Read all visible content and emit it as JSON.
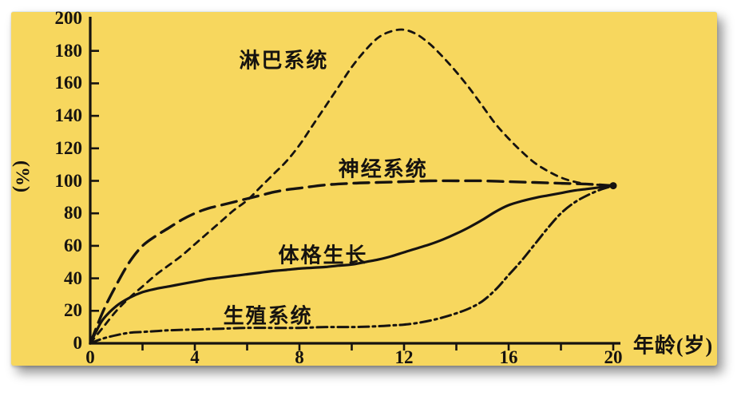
{
  "figure": {
    "background_color": "#F7D75E",
    "ink_color": "#161310",
    "page_color": "#ffffff"
  },
  "chart_data": {
    "type": "line",
    "title": "",
    "xlabel": "年龄(岁)",
    "ylabel": "(%)",
    "xlim": [
      0,
      20
    ],
    "ylim": [
      0,
      200
    ],
    "x_tick_labels": [
      0,
      4,
      8,
      12,
      16,
      20
    ],
    "x_tick_marks_step": 2,
    "y_tick_labels": [
      0,
      20,
      40,
      60,
      80,
      100,
      120,
      140,
      160,
      180,
      200
    ],
    "grid": false,
    "legend_position": "inline-annotations",
    "converge_point": {
      "age": 20,
      "pct": 97
    },
    "series": [
      {
        "name": "lymphatic-system",
        "label": "淋巴系统",
        "line_style": "short-dash",
        "label_at": {
          "age": 7.4,
          "pct": 175
        },
        "points": [
          [
            0,
            0
          ],
          [
            0.5,
            10
          ],
          [
            1,
            20
          ],
          [
            1.5,
            28
          ],
          [
            2,
            35
          ],
          [
            2.5,
            42
          ],
          [
            3,
            48
          ],
          [
            3.5,
            54
          ],
          [
            4,
            61
          ],
          [
            4.5,
            68
          ],
          [
            5,
            75
          ],
          [
            5.5,
            82
          ],
          [
            6,
            88
          ],
          [
            6.5,
            96
          ],
          [
            7,
            104
          ],
          [
            7.5,
            112
          ],
          [
            8,
            122
          ],
          [
            8.5,
            134
          ],
          [
            9,
            146
          ],
          [
            9.5,
            158
          ],
          [
            10,
            170
          ],
          [
            10.5,
            180
          ],
          [
            11,
            188
          ],
          [
            11.5,
            192
          ],
          [
            12,
            193
          ],
          [
            12.5,
            190
          ],
          [
            13,
            184
          ],
          [
            13.5,
            176
          ],
          [
            14,
            167
          ],
          [
            14.5,
            157
          ],
          [
            15,
            146
          ],
          [
            15.5,
            135
          ],
          [
            16,
            126
          ],
          [
            16.5,
            118
          ],
          [
            17,
            111
          ],
          [
            17.5,
            106
          ],
          [
            18,
            102
          ],
          [
            18.5,
            99.5
          ],
          [
            19,
            98
          ],
          [
            19.5,
            97.5
          ],
          [
            20,
            97
          ]
        ]
      },
      {
        "name": "nervous-system",
        "label": "神经系统",
        "line_style": "long-dash",
        "label_at": {
          "age": 11.2,
          "pct": 108
        },
        "points": [
          [
            0,
            0
          ],
          [
            0.5,
            20
          ],
          [
            1,
            36
          ],
          [
            1.5,
            50
          ],
          [
            2,
            60
          ],
          [
            2.5,
            66
          ],
          [
            3,
            71
          ],
          [
            3.5,
            76
          ],
          [
            4,
            80
          ],
          [
            4.5,
            83
          ],
          [
            5,
            85
          ],
          [
            5.5,
            87
          ],
          [
            6,
            89
          ],
          [
            6.5,
            91
          ],
          [
            7,
            93
          ],
          [
            7.5,
            94.5
          ],
          [
            8,
            95.5
          ],
          [
            9,
            97.5
          ],
          [
            10,
            98.5
          ],
          [
            11,
            99
          ],
          [
            12,
            99.5
          ],
          [
            13,
            100
          ],
          [
            14,
            100
          ],
          [
            15,
            100
          ],
          [
            16,
            99.5
          ],
          [
            17,
            99
          ],
          [
            18,
            98.5
          ],
          [
            19,
            98
          ],
          [
            20,
            97
          ]
        ]
      },
      {
        "name": "general-growth",
        "label": "体格生长",
        "line_style": "solid",
        "label_at": {
          "age": 8.9,
          "pct": 55
        },
        "points": [
          [
            0,
            0
          ],
          [
            0.25,
            8
          ],
          [
            0.5,
            15
          ],
          [
            1,
            23
          ],
          [
            1.5,
            28
          ],
          [
            2,
            31.5
          ],
          [
            2.5,
            33.5
          ],
          [
            3,
            35
          ],
          [
            3.5,
            36.5
          ],
          [
            4,
            38
          ],
          [
            4.5,
            39.5
          ],
          [
            5,
            40.5
          ],
          [
            5.5,
            41.5
          ],
          [
            6,
            42.5
          ],
          [
            6.5,
            43.5
          ],
          [
            7,
            44.5
          ],
          [
            7.5,
            45.2
          ],
          [
            8,
            46
          ],
          [
            8.5,
            46.5
          ],
          [
            9,
            47
          ],
          [
            9.5,
            47.8
          ],
          [
            10,
            48.5
          ],
          [
            10.5,
            50
          ],
          [
            11,
            51.5
          ],
          [
            11.5,
            53.5
          ],
          [
            12,
            56
          ],
          [
            12.5,
            58.5
          ],
          [
            13,
            61
          ],
          [
            13.5,
            64
          ],
          [
            14,
            67.5
          ],
          [
            14.5,
            71.5
          ],
          [
            15,
            76
          ],
          [
            15.5,
            81
          ],
          [
            16,
            85
          ],
          [
            16.5,
            87.5
          ],
          [
            17,
            89.5
          ],
          [
            17.5,
            91
          ],
          [
            18,
            92.5
          ],
          [
            18.5,
            94
          ],
          [
            19,
            95
          ],
          [
            19.5,
            96
          ],
          [
            20,
            97
          ]
        ]
      },
      {
        "name": "reproductive-system",
        "label": "生殖系统",
        "line_style": "dash-dot",
        "label_at": {
          "age": 6.8,
          "pct": 17.5
        },
        "points": [
          [
            0,
            0
          ],
          [
            0.5,
            3
          ],
          [
            1,
            5
          ],
          [
            1.5,
            6.5
          ],
          [
            2,
            7
          ],
          [
            2.5,
            7.5
          ],
          [
            3,
            8
          ],
          [
            4,
            8.5
          ],
          [
            5,
            9
          ],
          [
            6,
            9.5
          ],
          [
            7,
            9.5
          ],
          [
            8,
            9.5
          ],
          [
            9,
            10
          ],
          [
            10,
            10
          ],
          [
            10.5,
            10.2
          ],
          [
            11,
            10.5
          ],
          [
            11.5,
            11
          ],
          [
            12,
            11.5
          ],
          [
            12.5,
            12.5
          ],
          [
            13,
            14
          ],
          [
            13.5,
            16
          ],
          [
            14,
            18.5
          ],
          [
            14.5,
            21.5
          ],
          [
            15,
            26
          ],
          [
            15.5,
            33
          ],
          [
            16,
            42
          ],
          [
            16.5,
            51
          ],
          [
            17,
            61
          ],
          [
            17.5,
            71
          ],
          [
            18,
            80
          ],
          [
            18.5,
            86.5
          ],
          [
            19,
            91
          ],
          [
            19.5,
            94.5
          ],
          [
            20,
            97
          ]
        ]
      }
    ]
  }
}
